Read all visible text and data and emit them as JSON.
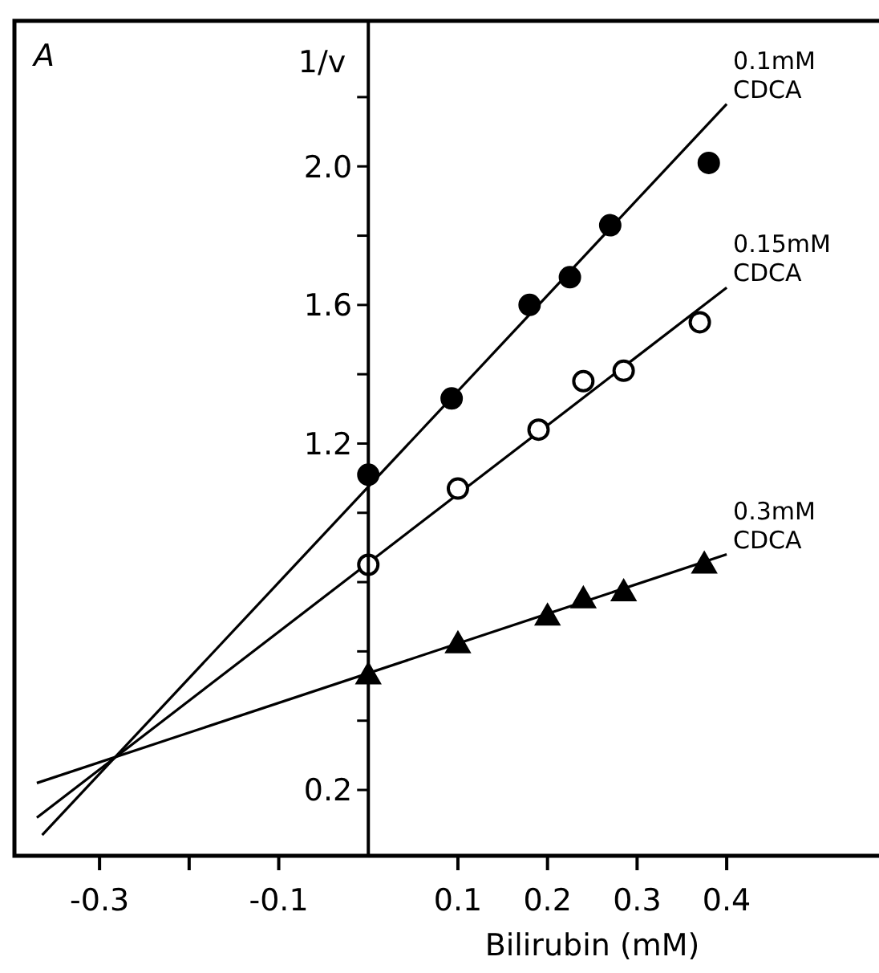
{
  "chart_data": {
    "type": "scatter",
    "xlabel": "Bilirubin (mM)",
    "ylabel": "1/v",
    "annotations": [
      "A"
    ],
    "xlim": [
      -0.395,
      0.57
    ],
    "ylim": [
      0.01,
      2.42
    ],
    "xticks": [
      -0.3,
      {
        "value": -0.2,
        "label": null
      },
      -0.1,
      0.1,
      0.2,
      0.3,
      0.4
    ],
    "yticks": [
      0.2,
      {
        "value": 0.4,
        "label": null
      },
      {
        "value": 0.6,
        "label": null
      },
      {
        "value": 0.8,
        "label": null
      },
      {
        "value": 1.0,
        "label": null
      },
      1.2,
      {
        "value": 1.4,
        "label": null
      },
      1.6,
      {
        "value": 1.8,
        "label": null
      },
      {
        "value": 2.0,
        "label": "2.0"
      },
      {
        "value": 2.2,
        "label": null
      }
    ],
    "grid": false,
    "series": [
      {
        "type": "line",
        "name": "0.1mM CDCA",
        "color": "#000000",
        "x": [
          -0.364,
          0.4
        ],
        "values": [
          0.07,
          2.18
        ],
        "line_style": "solid"
      },
      {
        "type": "line",
        "name": "0.15mM CDCA",
        "color": "#000000",
        "x": [
          -0.37,
          0.4
        ],
        "values": [
          0.12,
          1.65
        ],
        "line_style": "solid"
      },
      {
        "type": "line",
        "name": "0.3mM CDCA",
        "color": "#000000",
        "x": [
          -0.37,
          0.4
        ],
        "values": [
          0.22,
          0.88
        ],
        "line_style": "solid"
      },
      {
        "color": "#000000",
        "marker": "circle",
        "x": [
          0,
          0.093,
          0.18,
          0.225,
          0.27,
          0.38
        ],
        "values": [
          1.11,
          1.33,
          1.6,
          1.68,
          1.83,
          2.01
        ]
      },
      {
        "color": "#ffffff",
        "marker": "circle",
        "x": [
          0,
          0.1,
          0.19,
          0.24,
          0.285,
          0.37
        ],
        "values": [
          0.85,
          1.07,
          1.24,
          1.38,
          1.41,
          1.55
        ]
      },
      {
        "color": "#000000",
        "marker": "triangle",
        "x": [
          0,
          0.1,
          0.2,
          0.24,
          0.285,
          0.375
        ],
        "values": [
          0.53,
          0.62,
          0.7,
          0.75,
          0.77,
          0.85
        ]
      }
    ]
  }
}
